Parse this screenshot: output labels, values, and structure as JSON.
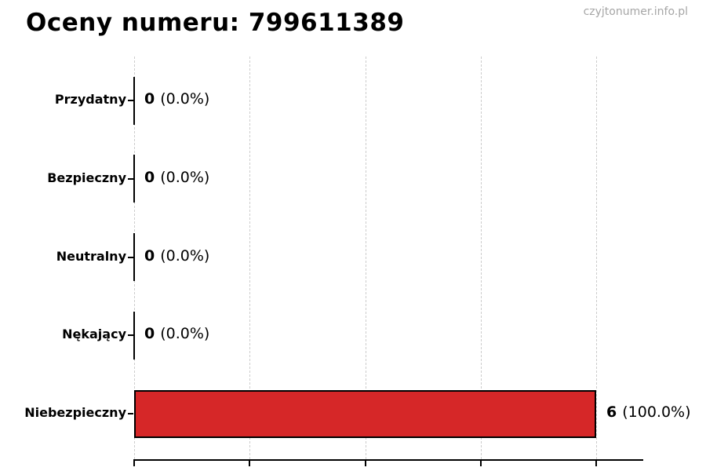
{
  "title": "Oceny numeru: 799611389",
  "watermark": "czyjtonumer.info.pl",
  "chart_data": {
    "type": "bar",
    "orientation": "horizontal",
    "title": "Oceny numeru: 799611389",
    "categories": [
      "Przydatny",
      "Bezpieczny",
      "Neutralny",
      "Nękający",
      "Niebezpieczny"
    ],
    "values": [
      0,
      0,
      0,
      0,
      6
    ],
    "percent_display": [
      "(0.0%)",
      "(0.0%)",
      "(0.0%)",
      "(0.0%)",
      "(100.0%)"
    ],
    "xlim": [
      0,
      6.6
    ],
    "x_ticks": [
      0,
      1.5,
      3,
      4.5,
      6
    ],
    "x_tick_labels_visible": false,
    "grid": "vertical-dashed",
    "legend": "none",
    "bar_color": "#d62728",
    "bar_edge_color": "#000000",
    "zero_value_rendering": "collapsed black edge line at x=0"
  },
  "colors": {
    "background": "#ffffff",
    "bar_fill": "#d62728",
    "bar_edge": "#000000",
    "grid": "#cccccc",
    "axis": "#000000",
    "text": "#000000",
    "watermark": "#a6a6a6"
  }
}
